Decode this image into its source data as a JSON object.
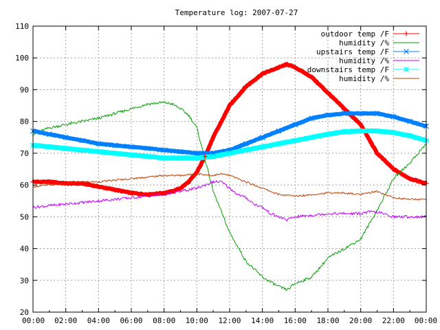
{
  "chart_data": {
    "type": "line",
    "title": "Temperature log: 2007-07-27",
    "xlabel": "",
    "ylabel": "",
    "ylim": [
      20,
      110
    ],
    "xlim": [
      0,
      24
    ],
    "grid": true,
    "legend_position": "top-right",
    "x_tick_labels": [
      "00:00",
      "02:00",
      "04:00",
      "06:00",
      "08:00",
      "10:00",
      "12:00",
      "14:00",
      "16:00",
      "18:00",
      "20:00",
      "22:00",
      "00:00"
    ],
    "y_tick_labels": [
      "20",
      "30",
      "40",
      "50",
      "60",
      "70",
      "80",
      "90",
      "100",
      "110"
    ],
    "series": [
      {
        "name": "outdoor temp /F",
        "color": "#ff0000",
        "marker": "plus",
        "x": [
          0,
          1,
          2,
          3,
          4,
          5,
          6,
          7,
          8,
          8.5,
          9,
          9.5,
          10,
          10.5,
          11,
          12,
          13,
          14,
          15,
          15.5,
          16,
          17,
          18,
          19,
          20,
          21,
          22,
          23,
          24
        ],
        "y": [
          61,
          61,
          60.5,
          60.5,
          59.5,
          58.5,
          57.5,
          57,
          57.5,
          58,
          59,
          61,
          64,
          69,
          75,
          85,
          91,
          95,
          97,
          98,
          97,
          94,
          89,
          84,
          79,
          70,
          65,
          62,
          60.5
        ]
      },
      {
        "name": "humidity /%",
        "color": "#00a000",
        "marker": "none",
        "x": [
          0,
          1,
          2,
          3,
          4,
          5,
          6,
          7,
          8,
          8.5,
          9,
          9.5,
          10,
          10.5,
          11,
          12,
          13,
          14,
          15,
          15.5,
          16,
          17,
          18,
          19,
          20,
          21,
          22,
          23,
          24
        ],
        "y": [
          76,
          78,
          79,
          80,
          81,
          82.5,
          84,
          85.5,
          86,
          85.5,
          84,
          82,
          78,
          68,
          58,
          45,
          36,
          31,
          28,
          27,
          29,
          31,
          37,
          40,
          43,
          52,
          62,
          67,
          73
        ]
      },
      {
        "name": "upstairs temp /F",
        "color": "#0080ff",
        "marker": "cross",
        "x": [
          0,
          1,
          2,
          3,
          4,
          5,
          6,
          7,
          8,
          9,
          10,
          11,
          12,
          13,
          14,
          15,
          16,
          17,
          18,
          19,
          20,
          21,
          22,
          23,
          24
        ],
        "y": [
          77,
          76,
          75,
          74,
          73,
          72.5,
          72,
          71.5,
          71,
          70.5,
          70,
          70,
          71,
          73,
          75,
          77,
          79,
          81,
          82,
          82.5,
          82.5,
          82.5,
          81.5,
          80,
          78.5
        ]
      },
      {
        "name": "humidity /%",
        "color": "#c000ff",
        "marker": "none",
        "x": [
          0,
          1,
          2,
          3,
          4,
          5,
          6,
          7,
          8,
          9,
          10,
          10.5,
          11,
          11.5,
          12,
          12.5,
          13,
          13.5,
          14,
          14.5,
          15,
          15.5,
          16,
          17,
          18,
          19,
          20,
          20.5,
          21,
          22,
          23,
          24
        ],
        "y": [
          53,
          53.5,
          54,
          54.5,
          55,
          55.5,
          56,
          56.5,
          57,
          58,
          59,
          60,
          61,
          61,
          59,
          57,
          56,
          54,
          53,
          51,
          50,
          49,
          50,
          50.5,
          51,
          51,
          51,
          51.5,
          51.5,
          50,
          50,
          50
        ]
      },
      {
        "name": "downstairs temp /F",
        "color": "#00ffff",
        "marker": "star",
        "x": [
          0,
          1,
          2,
          3,
          4,
          5,
          6,
          7,
          8,
          9,
          10,
          11,
          12,
          13,
          14,
          15,
          16,
          17,
          18,
          19,
          20,
          21,
          22,
          23,
          24
        ],
        "y": [
          72.5,
          72,
          71.5,
          71,
          70.5,
          70,
          69.5,
          69,
          68.5,
          68.5,
          68.5,
          69,
          70,
          71,
          72,
          73,
          74,
          75,
          76,
          76.8,
          77,
          77,
          76.5,
          75.5,
          74
        ]
      },
      {
        "name": "humidity /%",
        "color": "#c04000",
        "marker": "none",
        "x": [
          0,
          1,
          2,
          3,
          4,
          5,
          6,
          7,
          8,
          9,
          10,
          11,
          11.5,
          12,
          12.5,
          13,
          14,
          15,
          16,
          17,
          18,
          19,
          20,
          20.5,
          21,
          22,
          23,
          24
        ],
        "y": [
          59.5,
          60,
          60.5,
          61,
          61,
          61.5,
          62,
          62.5,
          63,
          63,
          63.5,
          63,
          63.5,
          63,
          62,
          61,
          59,
          57,
          56.5,
          57,
          57.5,
          57.5,
          57,
          57.5,
          58,
          56,
          55.5,
          55.5
        ]
      }
    ]
  }
}
